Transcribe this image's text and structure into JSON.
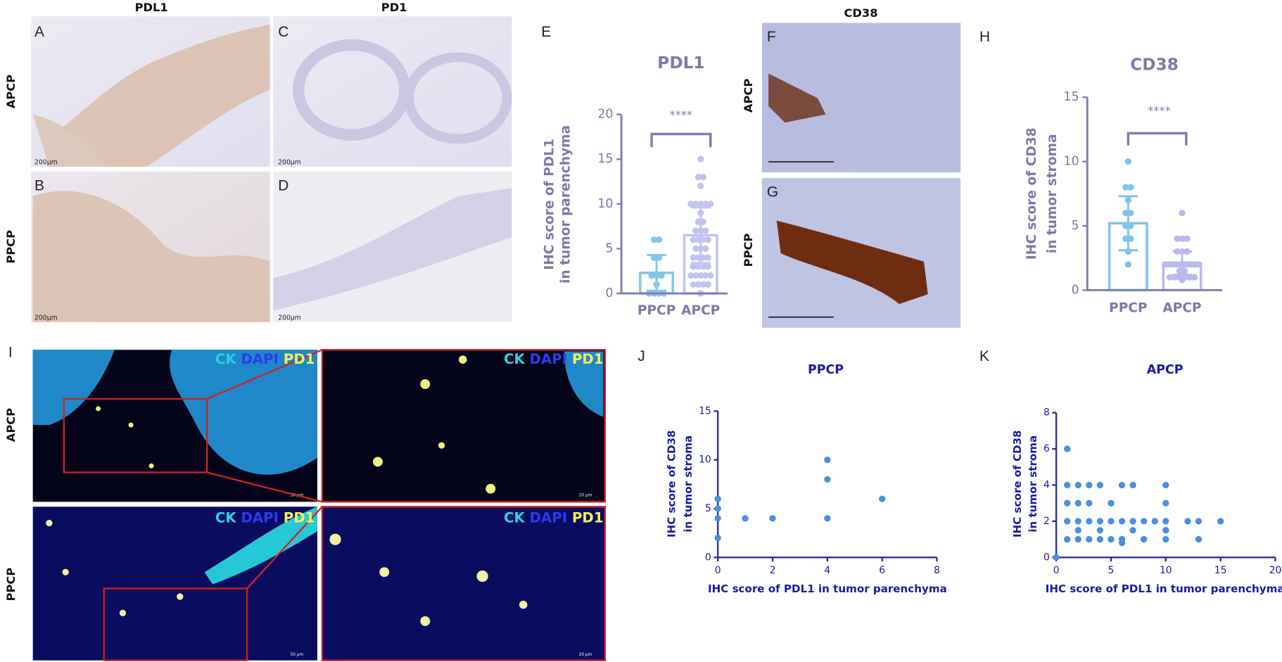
{
  "histology": {
    "columns": [
      "PDL1",
      "PD1",
      "CD38"
    ],
    "rows": [
      "APCP",
      "PPCP"
    ],
    "panels": [
      {
        "letter": "A",
        "scale": "200μm"
      },
      {
        "letter": "B",
        "scale": "200μm"
      },
      {
        "letter": "C",
        "scale": "200μm"
      },
      {
        "letter": "D",
        "scale": "200μm"
      },
      {
        "letter": "F"
      },
      {
        "letter": "G"
      }
    ]
  },
  "immunofluorescence": {
    "letter": "I",
    "rows": [
      "APCP",
      "PPCP"
    ],
    "panels": [
      {
        "channels": [
          "CK",
          "DAPI",
          "PD1"
        ],
        "scale": "50 μm"
      },
      {
        "channels": [
          "CK",
          "DAPI",
          "PD1"
        ],
        "scale": "20 μm"
      },
      {
        "channels": [
          "CK",
          "DAPI",
          "PD1"
        ],
        "scale": "50 μm"
      },
      {
        "channels": [
          "CK",
          "DAPI",
          "PD1"
        ],
        "scale": "20 μm"
      }
    ]
  },
  "chart_data": [
    {
      "type": "bar",
      "label": "E",
      "title": "PDL1",
      "y_label": [
        "IHC score of PDL1",
        "in tumor parenchyma"
      ],
      "categories": [
        "PPCP",
        "APCP"
      ],
      "values": [
        2.3,
        6.5
      ],
      "errors": [
        2.0,
        3.1
      ],
      "colors": [
        "#86c5ea",
        "#c2c2f0"
      ],
      "points": [
        [
          0,
          0,
          0,
          0,
          1,
          2,
          2,
          2,
          4,
          4,
          6,
          6
        ],
        [
          0,
          1,
          1,
          1,
          1,
          2,
          2,
          2,
          2,
          2,
          3,
          3,
          3,
          3,
          4,
          4,
          4,
          4,
          5,
          5,
          5,
          6,
          6,
          6,
          6,
          7,
          7,
          7,
          8,
          8,
          9,
          10,
          10,
          10,
          10,
          10,
          12,
          13,
          13,
          15
        ]
      ],
      "ylim": [
        0,
        20
      ],
      "yticks": [
        0,
        5,
        10,
        15,
        20
      ],
      "annotation": "****"
    },
    {
      "type": "bar",
      "label": "H",
      "title": "CD38",
      "y_label": [
        "IHC score of CD38",
        "in tumor stroma"
      ],
      "categories": [
        "PPCP",
        "APCP"
      ],
      "values": [
        5.2,
        2.1
      ],
      "errors": [
        2.1,
        0.9
      ],
      "colors": [
        "#7fc4ec",
        "#b9b9ee"
      ],
      "points": [
        [
          10,
          8,
          8,
          7,
          6,
          6,
          5,
          5,
          4,
          4,
          3,
          2
        ],
        [
          6,
          4,
          4,
          4,
          3,
          3,
          3,
          2,
          2,
          2,
          2,
          2,
          2,
          2,
          2,
          2,
          2,
          1.5,
          1.5,
          1,
          1,
          1,
          1,
          1,
          1,
          0.8
        ]
      ],
      "ylim": [
        0,
        15
      ],
      "yticks": [
        0,
        5,
        10,
        15
      ],
      "annotation": "****"
    },
    {
      "type": "scatter",
      "label": "J",
      "title": "PPCP",
      "x_label": "IHC score of PDL1 in tumor parenchyma",
      "y_label": [
        "IHC score of CD38",
        "in tumor stroma"
      ],
      "x": [
        0,
        0,
        0,
        0,
        1,
        2,
        4,
        4,
        4,
        6
      ],
      "values": [
        6,
        5,
        4,
        2,
        4,
        4,
        10,
        8,
        4,
        6
      ],
      "color": "#4a8fe0",
      "xlim": [
        0,
        8
      ],
      "xticks": [
        0,
        2,
        4,
        6,
        8
      ],
      "ylim": [
        0,
        15
      ],
      "yticks": [
        0,
        5,
        10,
        15
      ]
    },
    {
      "type": "scatter",
      "label": "K",
      "title": "APCP",
      "x_label": "IHC score of PDL1 in tumor parenchyma",
      "y_label": [
        "IHC score of CD38",
        "in tumor stroma"
      ],
      "x": [
        0,
        1,
        1,
        1,
        1,
        1,
        2,
        2,
        2,
        2,
        2,
        3,
        3,
        3,
        3,
        4,
        4,
        4,
        4,
        5,
        5,
        5,
        6,
        6,
        6,
        6,
        7,
        7,
        7,
        8,
        8,
        9,
        10,
        10,
        10,
        10,
        10,
        12,
        13,
        13,
        15
      ],
      "values": [
        0,
        6,
        4,
        3,
        2,
        1,
        4,
        3,
        2,
        1.5,
        1,
        4,
        3,
        2,
        1,
        4,
        2,
        1.5,
        1,
        3,
        2,
        1,
        4,
        2,
        1,
        0.8,
        4,
        2,
        1.5,
        2,
        1,
        2,
        4,
        3,
        2,
        1.5,
        1,
        2,
        2,
        1,
        2
      ],
      "color": "#4a8fe0",
      "xlim": [
        0,
        20
      ],
      "xticks": [
        0,
        5,
        10,
        15,
        20
      ],
      "ylim": [
        0,
        8
      ],
      "yticks": [
        0,
        2,
        4,
        6,
        8
      ]
    }
  ]
}
